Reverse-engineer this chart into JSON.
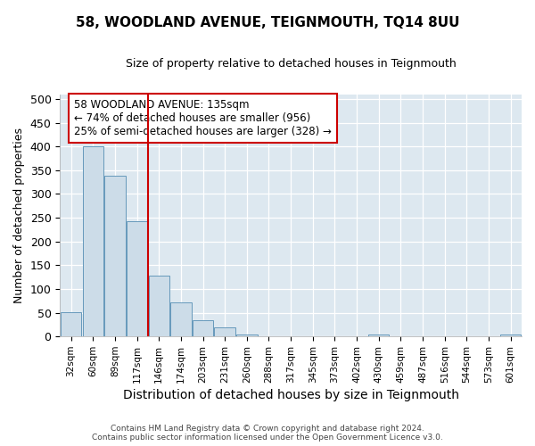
{
  "title": "58, WOODLAND AVENUE, TEIGNMOUTH, TQ14 8UU",
  "subtitle": "Size of property relative to detached houses in Teignmouth",
  "xlabel": "Distribution of detached houses by size in Teignmouth",
  "ylabel": "Number of detached properties",
  "footer_line1": "Contains HM Land Registry data © Crown copyright and database right 2024.",
  "footer_line2": "Contains public sector information licensed under the Open Government Licence v3.0.",
  "categories": [
    "32sqm",
    "60sqm",
    "89sqm",
    "117sqm",
    "146sqm",
    "174sqm",
    "203sqm",
    "231sqm",
    "260sqm",
    "288sqm",
    "317sqm",
    "345sqm",
    "373sqm",
    "402sqm",
    "430sqm",
    "459sqm",
    "487sqm",
    "516sqm",
    "544sqm",
    "573sqm",
    "601sqm"
  ],
  "values": [
    52,
    400,
    338,
    242,
    128,
    72,
    35,
    20,
    5,
    0,
    0,
    0,
    0,
    0,
    5,
    0,
    0,
    0,
    0,
    0,
    5
  ],
  "bar_color": "#ccdce8",
  "bar_edge_color": "#6699bb",
  "bg_color": "#dde8f0",
  "vline_color": "#cc0000",
  "annotation_text": "58 WOODLAND AVENUE: 135sqm\n← 74% of detached houses are smaller (956)\n25% of semi-detached houses are larger (328) →",
  "annotation_box_color": "#cc0000",
  "ylim": [
    0,
    510
  ],
  "yticks": [
    0,
    50,
    100,
    150,
    200,
    250,
    300,
    350,
    400,
    450,
    500
  ],
  "title_fontsize": 11,
  "subtitle_fontsize": 9,
  "ylabel_fontsize": 9,
  "xlabel_fontsize": 10
}
